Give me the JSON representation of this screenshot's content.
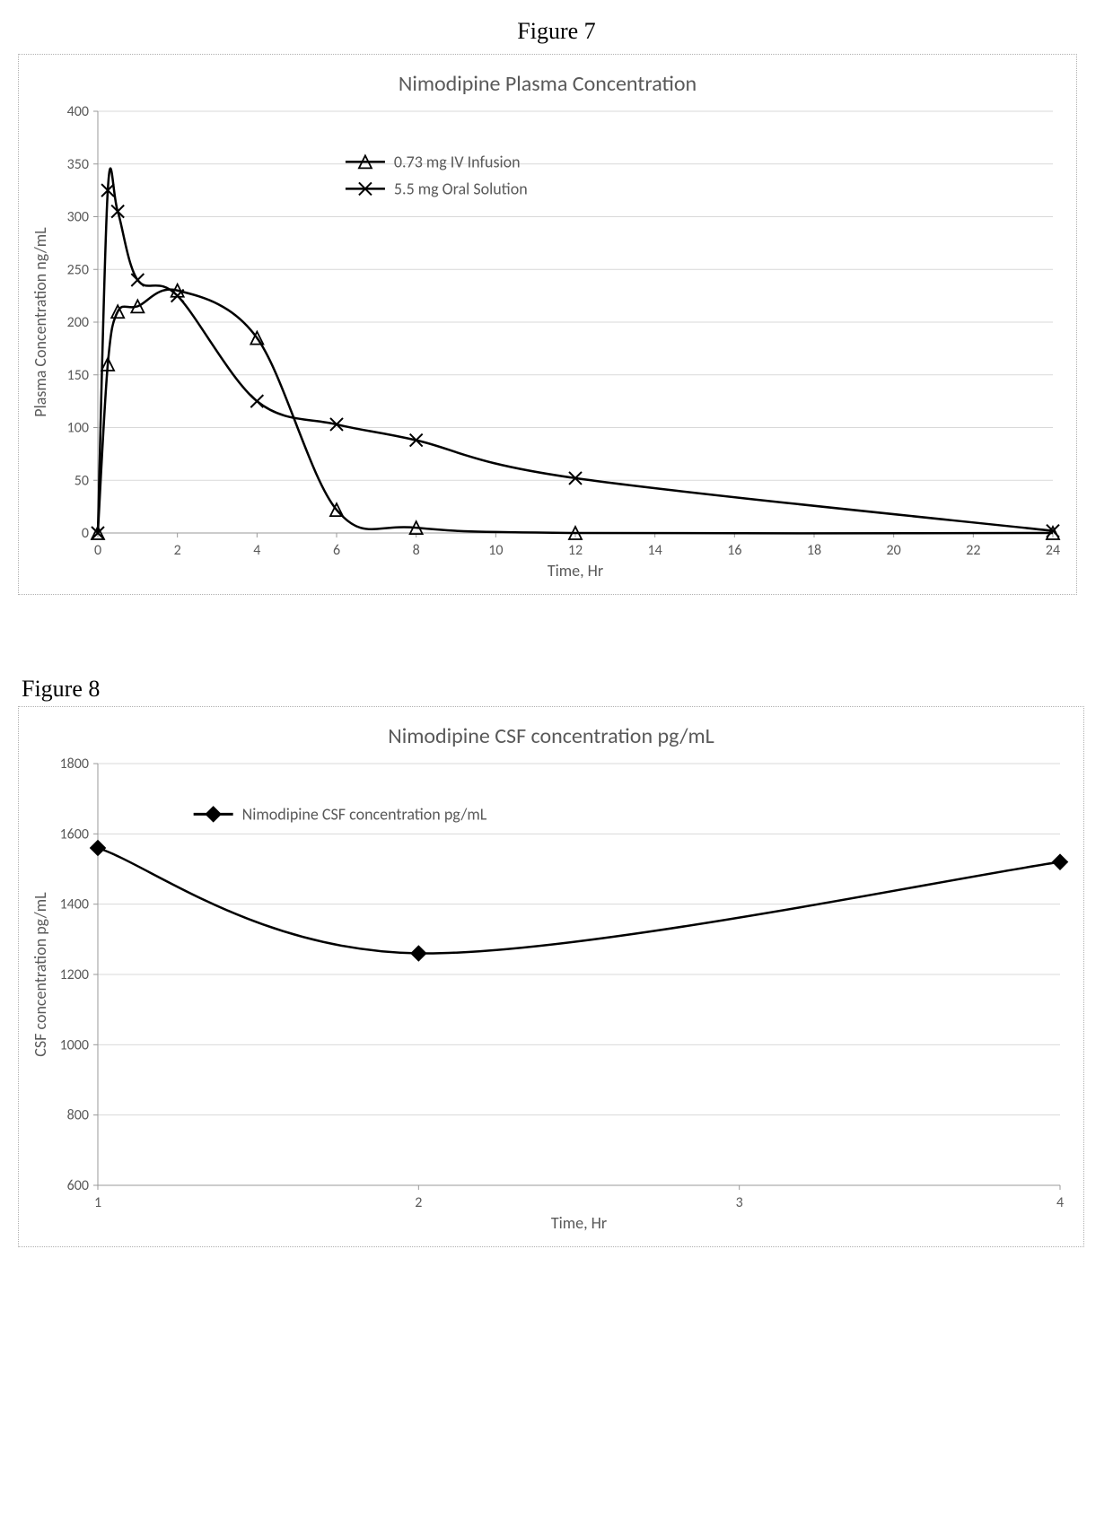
{
  "figure7": {
    "label": "Figure 7",
    "chart": {
      "type": "line",
      "title": "Nimodipine Plasma Concentration",
      "title_fontsize": 24,
      "title_color": "#595959",
      "xlabel": "Time, Hr",
      "ylabel": "Plasma Concentration ng/mL",
      "label_fontsize": 18,
      "label_color": "#595959",
      "xlim": [
        0,
        24
      ],
      "ylim": [
        0,
        400
      ],
      "xtick_step": 2,
      "ytick_step": 50,
      "xticks": [
        0,
        2,
        4,
        6,
        8,
        10,
        12,
        14,
        16,
        18,
        20,
        22,
        24
      ],
      "yticks": [
        0,
        50,
        100,
        150,
        200,
        250,
        300,
        350,
        400
      ],
      "tick_fontsize": 16,
      "tick_color": "#595959",
      "background_color": "#ffffff",
      "border_color": "#b0b0b0",
      "grid_color": "#d9d9d9",
      "grid": true,
      "line_color": "#000000",
      "line_width": 2.5,
      "series": [
        {
          "name": "0.73 mg IV Infusion",
          "marker": "triangle",
          "marker_stroke": "#000000",
          "marker_fill": "none",
          "marker_size": 7,
          "x": [
            0,
            0.25,
            0.5,
            1,
            2,
            4,
            6,
            8,
            12,
            24
          ],
          "y": [
            0,
            160,
            210,
            215,
            230,
            185,
            22,
            5,
            0,
            0
          ]
        },
        {
          "name": "5.5 mg Oral Solution",
          "marker": "x",
          "marker_stroke": "#000000",
          "marker_fill": "none",
          "marker_size": 7,
          "x": [
            0,
            0.25,
            0.5,
            1,
            2,
            4,
            6,
            8,
            12,
            24
          ],
          "y": [
            0,
            325,
            305,
            240,
            225,
            125,
            103,
            88,
            52,
            2
          ]
        }
      ],
      "legend": {
        "position": "inside-top-left",
        "x_offset_pct": 0.28,
        "y_offset_pct": 0.12,
        "fontsize": 18
      }
    }
  },
  "figure8": {
    "label": "Figure 8",
    "chart": {
      "type": "line",
      "title": "Nimodipine CSF concentration pg/mL",
      "title_fontsize": 24,
      "title_color": "#595959",
      "xlabel": "Time, Hr",
      "ylabel": "CSF concentration pg/mL",
      "label_fontsize": 18,
      "label_color": "#595959",
      "xlim": [
        1,
        4
      ],
      "ylim": [
        600,
        1800
      ],
      "xtick_step": 1,
      "ytick_step": 200,
      "xticks": [
        1,
        2,
        3,
        4
      ],
      "yticks": [
        600,
        800,
        1000,
        1200,
        1400,
        1600,
        1800
      ],
      "tick_fontsize": 16,
      "tick_color": "#595959",
      "background_color": "#ffffff",
      "border_color": "#b0b0b0",
      "grid_color": "#d9d9d9",
      "grid": true,
      "line_color": "#000000",
      "line_width": 3,
      "series": [
        {
          "name": "Nimodipine CSF concentration pg/mL",
          "marker": "diamond",
          "marker_stroke": "#000000",
          "marker_fill": "#000000",
          "marker_size": 8,
          "x": [
            1,
            2,
            4
          ],
          "y": [
            1560,
            1260,
            1520
          ]
        }
      ],
      "legend": {
        "position": "inside-top-left",
        "x_offset_pct": 0.12,
        "y_offset_pct": 0.12,
        "fontsize": 18
      }
    }
  }
}
